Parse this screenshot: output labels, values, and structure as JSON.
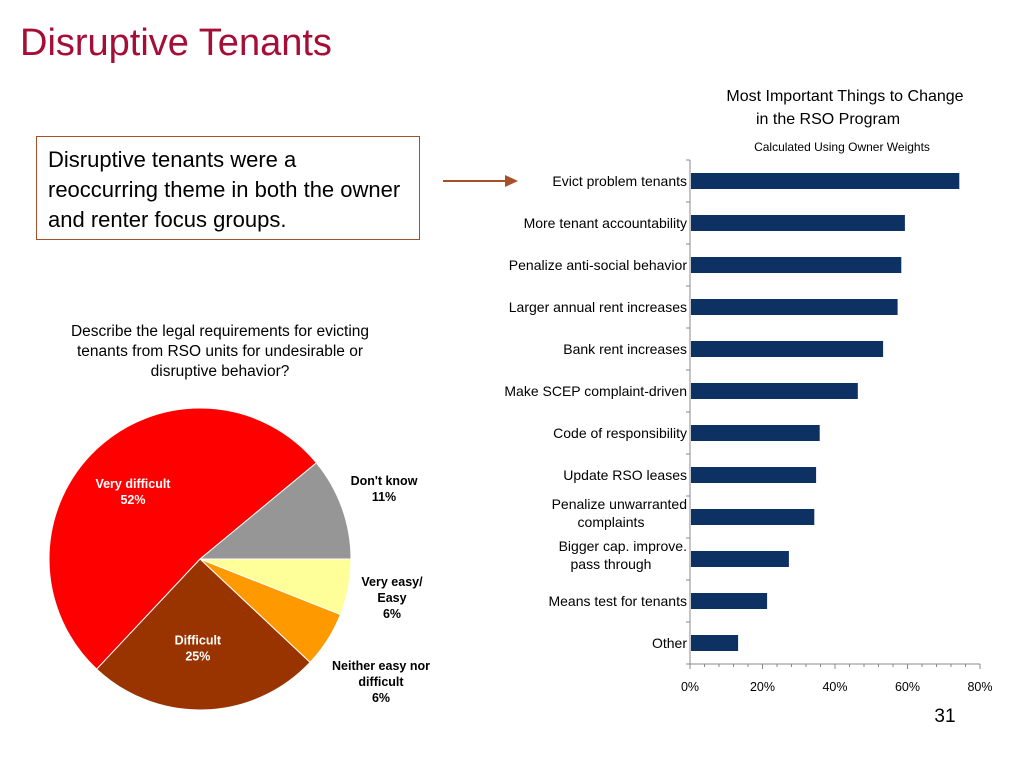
{
  "slide": {
    "title": "Disruptive Tenants",
    "callout": "Disruptive tenants were a reoccurring theme in both the owner and renter focus groups.",
    "page_number": "31"
  },
  "chart_data": [
    {
      "type": "pie",
      "title": "Describe the legal requirements for evicting tenants from RSO units for undesirable or disruptive behavior?",
      "slices": [
        {
          "label": "Don't know",
          "value": 11,
          "value_label": "11%",
          "color": "#969696",
          "label_position": "outside"
        },
        {
          "label": "Very easy/ Easy",
          "value": 6,
          "value_label": "6%",
          "color": "#ffff99",
          "label_position": "outside"
        },
        {
          "label": "Neither easy nor difficult",
          "value": 6,
          "value_label": "6%",
          "color": "#ff9900",
          "label_position": "outside"
        },
        {
          "label": "Difficult",
          "value": 25,
          "value_label": "25%",
          "color": "#993300",
          "label_position": "inside"
        },
        {
          "label": "Very difficult",
          "value": 52,
          "value_label": "52%",
          "color": "#ff0000",
          "label_position": "inside"
        }
      ]
    },
    {
      "type": "bar",
      "orientation": "horizontal",
      "title": "Most Important Things to Change in the RSO Program",
      "subtitle": "Calculated Using Owner Weights",
      "categories": [
        "Evict problem tenants",
        "More tenant accountability",
        "Penalize anti-social behavior",
        "Larger annual rent increases",
        "Bank rent increases",
        "Make SCEP complaint-driven",
        "Code of responsibility",
        "Update RSO leases",
        "Penalize unwarranted complaints",
        "Bigger cap. improve. pass through",
        "Means test for tenants",
        "Other"
      ],
      "category_lines": [
        [
          "Evict problem tenants"
        ],
        [
          "More tenant accountability"
        ],
        [
          "Penalize anti-social behavior"
        ],
        [
          "Larger annual rent increases"
        ],
        [
          "Bank rent increases"
        ],
        [
          "Make SCEP complaint-driven"
        ],
        [
          "Code of responsibility"
        ],
        [
          "Update RSO leases"
        ],
        [
          "Penalize unwarranted",
          "complaints"
        ],
        [
          "Bigger cap. improve.",
          "pass through"
        ],
        [
          "Means test for tenants"
        ],
        [
          "Other"
        ]
      ],
      "values": [
        0.74,
        0.59,
        0.58,
        0.57,
        0.53,
        0.46,
        0.355,
        0.345,
        0.34,
        0.27,
        0.21,
        0.13
      ],
      "xlim": [
        0,
        0.8
      ],
      "xticks": [
        0,
        0.2,
        0.4,
        0.6,
        0.8
      ],
      "xtick_labels": [
        "0%",
        "20%",
        "40%",
        "60%",
        "80%"
      ],
      "bar_color": "#0d3163",
      "highlighted_category": "Evict problem tenants",
      "highlight_arrow_color": "#a5502a",
      "grid": false
    }
  ]
}
